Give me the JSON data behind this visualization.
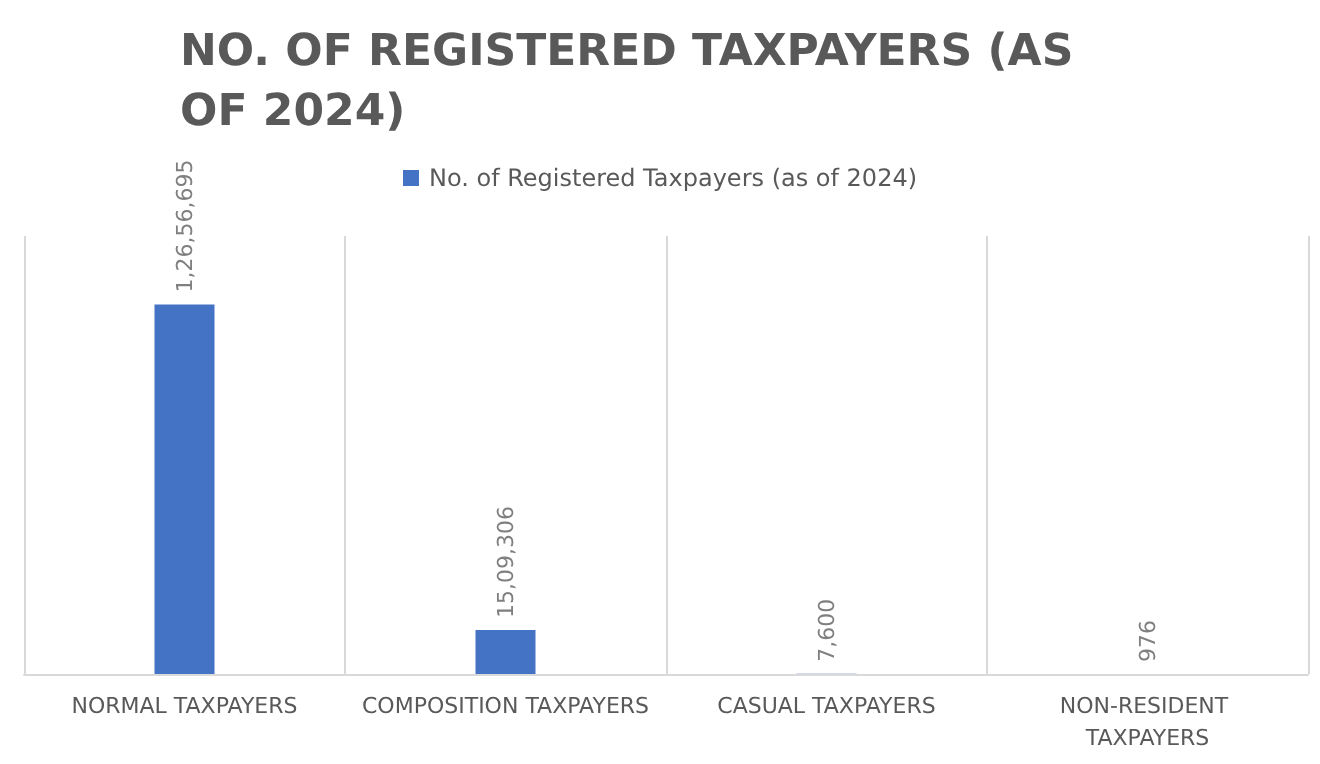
{
  "chart_data": {
    "type": "bar",
    "title": "NO. OF REGISTERED TAXPAYERS (AS OF 2024)",
    "categories": [
      "NORMAL TAXPAYERS",
      "COMPOSITION TAXPAYERS",
      "CASUAL TAXPAYERS",
      "NON-RESIDENT TAXPAYERS"
    ],
    "series": [
      {
        "name": "No. of Registered Taxpayers (as of 2024)",
        "color": "#4472c4",
        "values": [
          12656695,
          1509306,
          7600,
          976
        ],
        "value_labels": [
          "1,26,56,695",
          "15,09,306",
          "7,600",
          "976"
        ]
      }
    ],
    "grid": "x",
    "legend": "top"
  }
}
